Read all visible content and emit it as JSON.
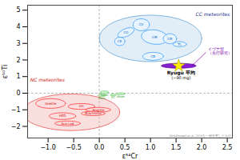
{
  "chart_data": {
    "type": "ellipse",
    "xlabel": "ε⁵⁴Cr",
    "ylabel": "ε⁵⁰Ti",
    "xlim": [
      -1.4,
      2.6
    ],
    "ylim": [
      -2.7,
      5.3
    ],
    "xticks": [
      {
        "value": -1.0,
        "label": "−1.0"
      },
      {
        "value": -0.5,
        "label": "−0.5"
      },
      {
        "value": 0.0,
        "label": "0.0"
      },
      {
        "value": 0.5,
        "label": "0.5"
      },
      {
        "value": 1.0,
        "label": "1.0"
      },
      {
        "value": 1.5,
        "label": "1.5"
      },
      {
        "value": 2.0,
        "label": "2.0"
      },
      {
        "value": 2.5,
        "label": "2.5"
      }
    ],
    "yticks": [
      {
        "value": -2,
        "label": "−2"
      },
      {
        "value": -1,
        "label": "−1"
      },
      0,
      1,
      2,
      3,
      4,
      5
    ],
    "grid": false,
    "reference_lines": {
      "x": [
        0
      ],
      "y": [
        0
      ]
    },
    "big_cc": {
      "color": "#c8dff0",
      "values": [
        {
          "x": 1.0,
          "y": 3.3,
          "w": 2.0,
          "h": 2.8,
          "angle": 0
        }
      ]
    },
    "big_nc": {
      "color": "#f5b8b8",
      "values": [
        {
          "x": -0.55,
          "y": -1.15,
          "w": 1.9,
          "h": 2.2,
          "angle": 0
        }
      ]
    },
    "ellipses_cc": {
      "color": "#e8f4ff",
      "values": [
        {
          "label": "CO",
          "x": 0.52,
          "y": 3.65,
          "w": 0.25,
          "h": 0.62,
          "angle": -20
        },
        {
          "label": "CV",
          "x": 0.82,
          "y": 4.12,
          "w": 0.32,
          "h": 0.72,
          "angle": 0
        },
        {
          "label": "CM",
          "x": 1.08,
          "y": 3.38,
          "w": 0.5,
          "h": 0.88,
          "angle": 8
        },
        {
          "label": "CR",
          "x": 1.38,
          "y": 3.28,
          "w": 0.26,
          "h": 0.6,
          "angle": 0
        },
        {
          "label": "CK",
          "x": 0.4,
          "y": 3.12,
          "w": 0.2,
          "h": 0.5,
          "angle": 0
        },
        {
          "label": "CB",
          "x": 1.05,
          "y": 2.22,
          "w": 0.4,
          "h": 0.48,
          "angle": -5
        },
        {
          "label": "TL",
          "x": 1.57,
          "y": 2.95,
          "w": 0.26,
          "h": 0.3,
          "angle": 0
        }
      ]
    },
    "ellipses_nc": {
      "color": "#ffdddd",
      "values": [
        {
          "label": "Ureilite",
          "x": -0.95,
          "y": -0.62,
          "w": 0.58,
          "h": 0.58,
          "angle": 0
        },
        {
          "label": "HED",
          "x": -0.72,
          "y": -1.38,
          "w": 0.52,
          "h": 0.4,
          "angle": 0
        },
        {
          "label": "Aca-Lod",
          "x": -0.62,
          "y": -1.82,
          "w": 0.5,
          "h": 0.28,
          "angle": 0
        },
        {
          "label": "OC",
          "x": -0.35,
          "y": -0.8,
          "w": 0.52,
          "h": 0.35,
          "angle": 0
        },
        {
          "label": "Angrite",
          "x": -0.02,
          "y": -1.0,
          "w": 0.48,
          "h": 0.28,
          "angle": 0
        },
        {
          "label": "Brachinite",
          "x": -0.12,
          "y": -1.22,
          "w": 0.46,
          "h": 0.26,
          "angle": 0
        }
      ]
    },
    "ellipses_earth": {
      "color": "#cceecc",
      "values": [
        {
          "label": "Earth",
          "x": 0.1,
          "y": 0.06,
          "w": 0.16,
          "h": 0.16,
          "angle": 0
        },
        {
          "label": "Moon",
          "x": 0.42,
          "y": -0.04,
          "w": 0.16,
          "h": 0.12,
          "angle": 0
        },
        {
          "label": "Mars",
          "x": 0.05,
          "y": -0.14,
          "w": 0.15,
          "h": 0.13,
          "angle": 0
        },
        {
          "label": "EC",
          "x": 0.27,
          "y": -0.11,
          "w": 0.11,
          "h": 0.11,
          "angle": 0
        }
      ]
    },
    "ivuna_ellipse": {
      "color": "#7700cc",
      "values": [
        {
          "x": 1.55,
          "y": 1.65,
          "w": 0.68,
          "h": 0.3,
          "angle": 0
        }
      ]
    },
    "ryugu": {
      "x": 1.55,
      "y": 1.65,
      "marker": "star",
      "color": "#ffee00",
      "label": "Ryugu 平均",
      "sublabel": "(~90 mg)"
    },
    "ivuna_label": {
      "lines": [
        "イヴナ型",
        "（先行研究）"
      ],
      "x": 2.1,
      "y": 2.52,
      "color": "#7700aa",
      "arrow": {
        "x1": 2.08,
        "y1": 2.45,
        "x2": 1.82,
        "y2": 1.68
      }
    },
    "cc_label": {
      "text": "CC meteorites",
      "x": 2.55,
      "y": 4.85,
      "color": "#223388"
    },
    "nc_label": {
      "text": "NC meteorites",
      "x": -1.35,
      "y": 0.9,
      "color": "#cc1111"
    },
    "footnote": {
      "text": "Qin&Norwell et al.,2015を一部改変したもの",
      "x": 2.58,
      "y": -2.65
    }
  }
}
